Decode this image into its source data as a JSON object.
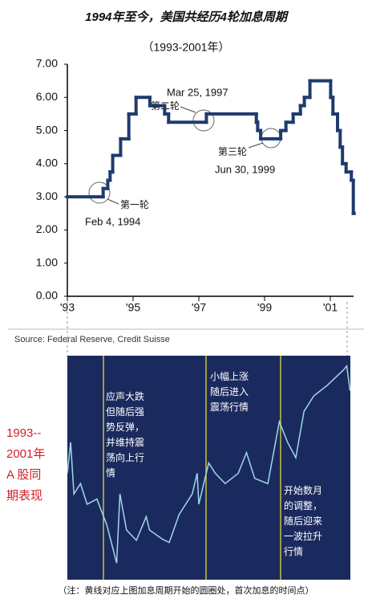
{
  "chart_data": [
    {
      "type": "step",
      "title": "1994年至今，美国共经历4轮加息周期",
      "subtitle": "（1993-2001年）",
      "source": "Source: Federal Reserve, Credit Suisse",
      "color": "#1f3a6e",
      "x": [
        1993.0,
        1994.09,
        1994.23,
        1994.3,
        1994.38,
        1994.62,
        1994.87,
        1995.09,
        1995.51,
        1995.96,
        1996.08,
        1997.23,
        1998.75,
        1998.79,
        1998.88,
        1999.49,
        1999.65,
        1999.87,
        2000.09,
        2000.21,
        2000.38,
        2001.01,
        2001.08,
        2001.22,
        2001.3,
        2001.37,
        2001.48,
        2001.64,
        2001.7
      ],
      "values": [
        3.0,
        3.25,
        3.5,
        3.75,
        4.25,
        4.75,
        5.5,
        6.0,
        5.75,
        5.5,
        5.25,
        5.5,
        5.25,
        5.0,
        4.75,
        5.0,
        5.25,
        5.5,
        5.75,
        6.0,
        6.5,
        6.0,
        5.5,
        5.0,
        4.5,
        4.0,
        3.75,
        3.5,
        2.5
      ],
      "xlim": [
        1993,
        2001.7
      ],
      "xticks": [
        {
          "value": 1993,
          "label": "'93"
        },
        {
          "value": 1995,
          "label": "'95"
        },
        {
          "value": 1997,
          "label": "'97"
        },
        {
          "value": 1999,
          "label": "'99"
        },
        {
          "value": 2001,
          "label": "'01"
        }
      ],
      "ylim": [
        0,
        7
      ],
      "yticks": [
        {
          "value": 0,
          "label": "0.00"
        },
        {
          "value": 1,
          "label": "1.00"
        },
        {
          "value": 2,
          "label": "2.00"
        },
        {
          "value": 3,
          "label": "3.00"
        },
        {
          "value": 4,
          "label": "4.00"
        },
        {
          "value": 5,
          "label": "5.00"
        },
        {
          "value": 6,
          "label": "6.00"
        },
        {
          "value": 7,
          "label": "7.00"
        }
      ],
      "annotations": [
        {
          "round": "第一轮",
          "date": "Feb 4, 1994"
        },
        {
          "round": "第二轮",
          "date": "Mar 25, 1997"
        },
        {
          "round": "第三轮",
          "date": "Jun 30, 1999"
        }
      ]
    },
    {
      "type": "line",
      "side_label": [
        "1993--",
        "2001年",
        "A 股同",
        "期表现"
      ],
      "notes": [
        [
          "应声大跌",
          "但随后强",
          "势反弹，",
          "并维持震",
          "荡向上行",
          "情"
        ],
        [
          "小幅上涨",
          "随后进入",
          "震荡行情"
        ],
        [
          "开始数月",
          "的调整，",
          "随后迎来",
          "一波拉升",
          "行情"
        ]
      ],
      "footnote": "（注：黄线对应上图加息周期开始的圆圈处，首次加息的时间点）",
      "color": "#9fd8e8",
      "x": [
        1993.0,
        1993.1,
        1993.2,
        1993.4,
        1993.6,
        1993.9,
        1994.2,
        1994.5,
        1994.6,
        1994.8,
        1995.1,
        1995.4,
        1995.5,
        1995.9,
        1996.1,
        1996.4,
        1996.8,
        1996.95,
        1997.0,
        1997.3,
        1997.5,
        1997.8,
        1998.2,
        1998.45,
        1998.7,
        1999.1,
        1999.45,
        1999.7,
        1999.95,
        2000.2,
        2000.5,
        2000.9,
        2001.4,
        2001.5,
        2001.6
      ],
      "values": [
        1200,
        1500,
        1000,
        1100,
        900,
        950,
        700,
        330,
        1000,
        650,
        550,
        780,
        650,
        560,
        530,
        800,
        1000,
        1200,
        900,
        1300,
        1200,
        1100,
        1200,
        1400,
        1150,
        1100,
        1700,
        1500,
        1350,
        1800,
        1950,
        2050,
        2200,
        2240,
        2000
      ],
      "xlim": [
        1993,
        2001.7
      ],
      "ylim": [
        200,
        2300
      ]
    }
  ]
}
